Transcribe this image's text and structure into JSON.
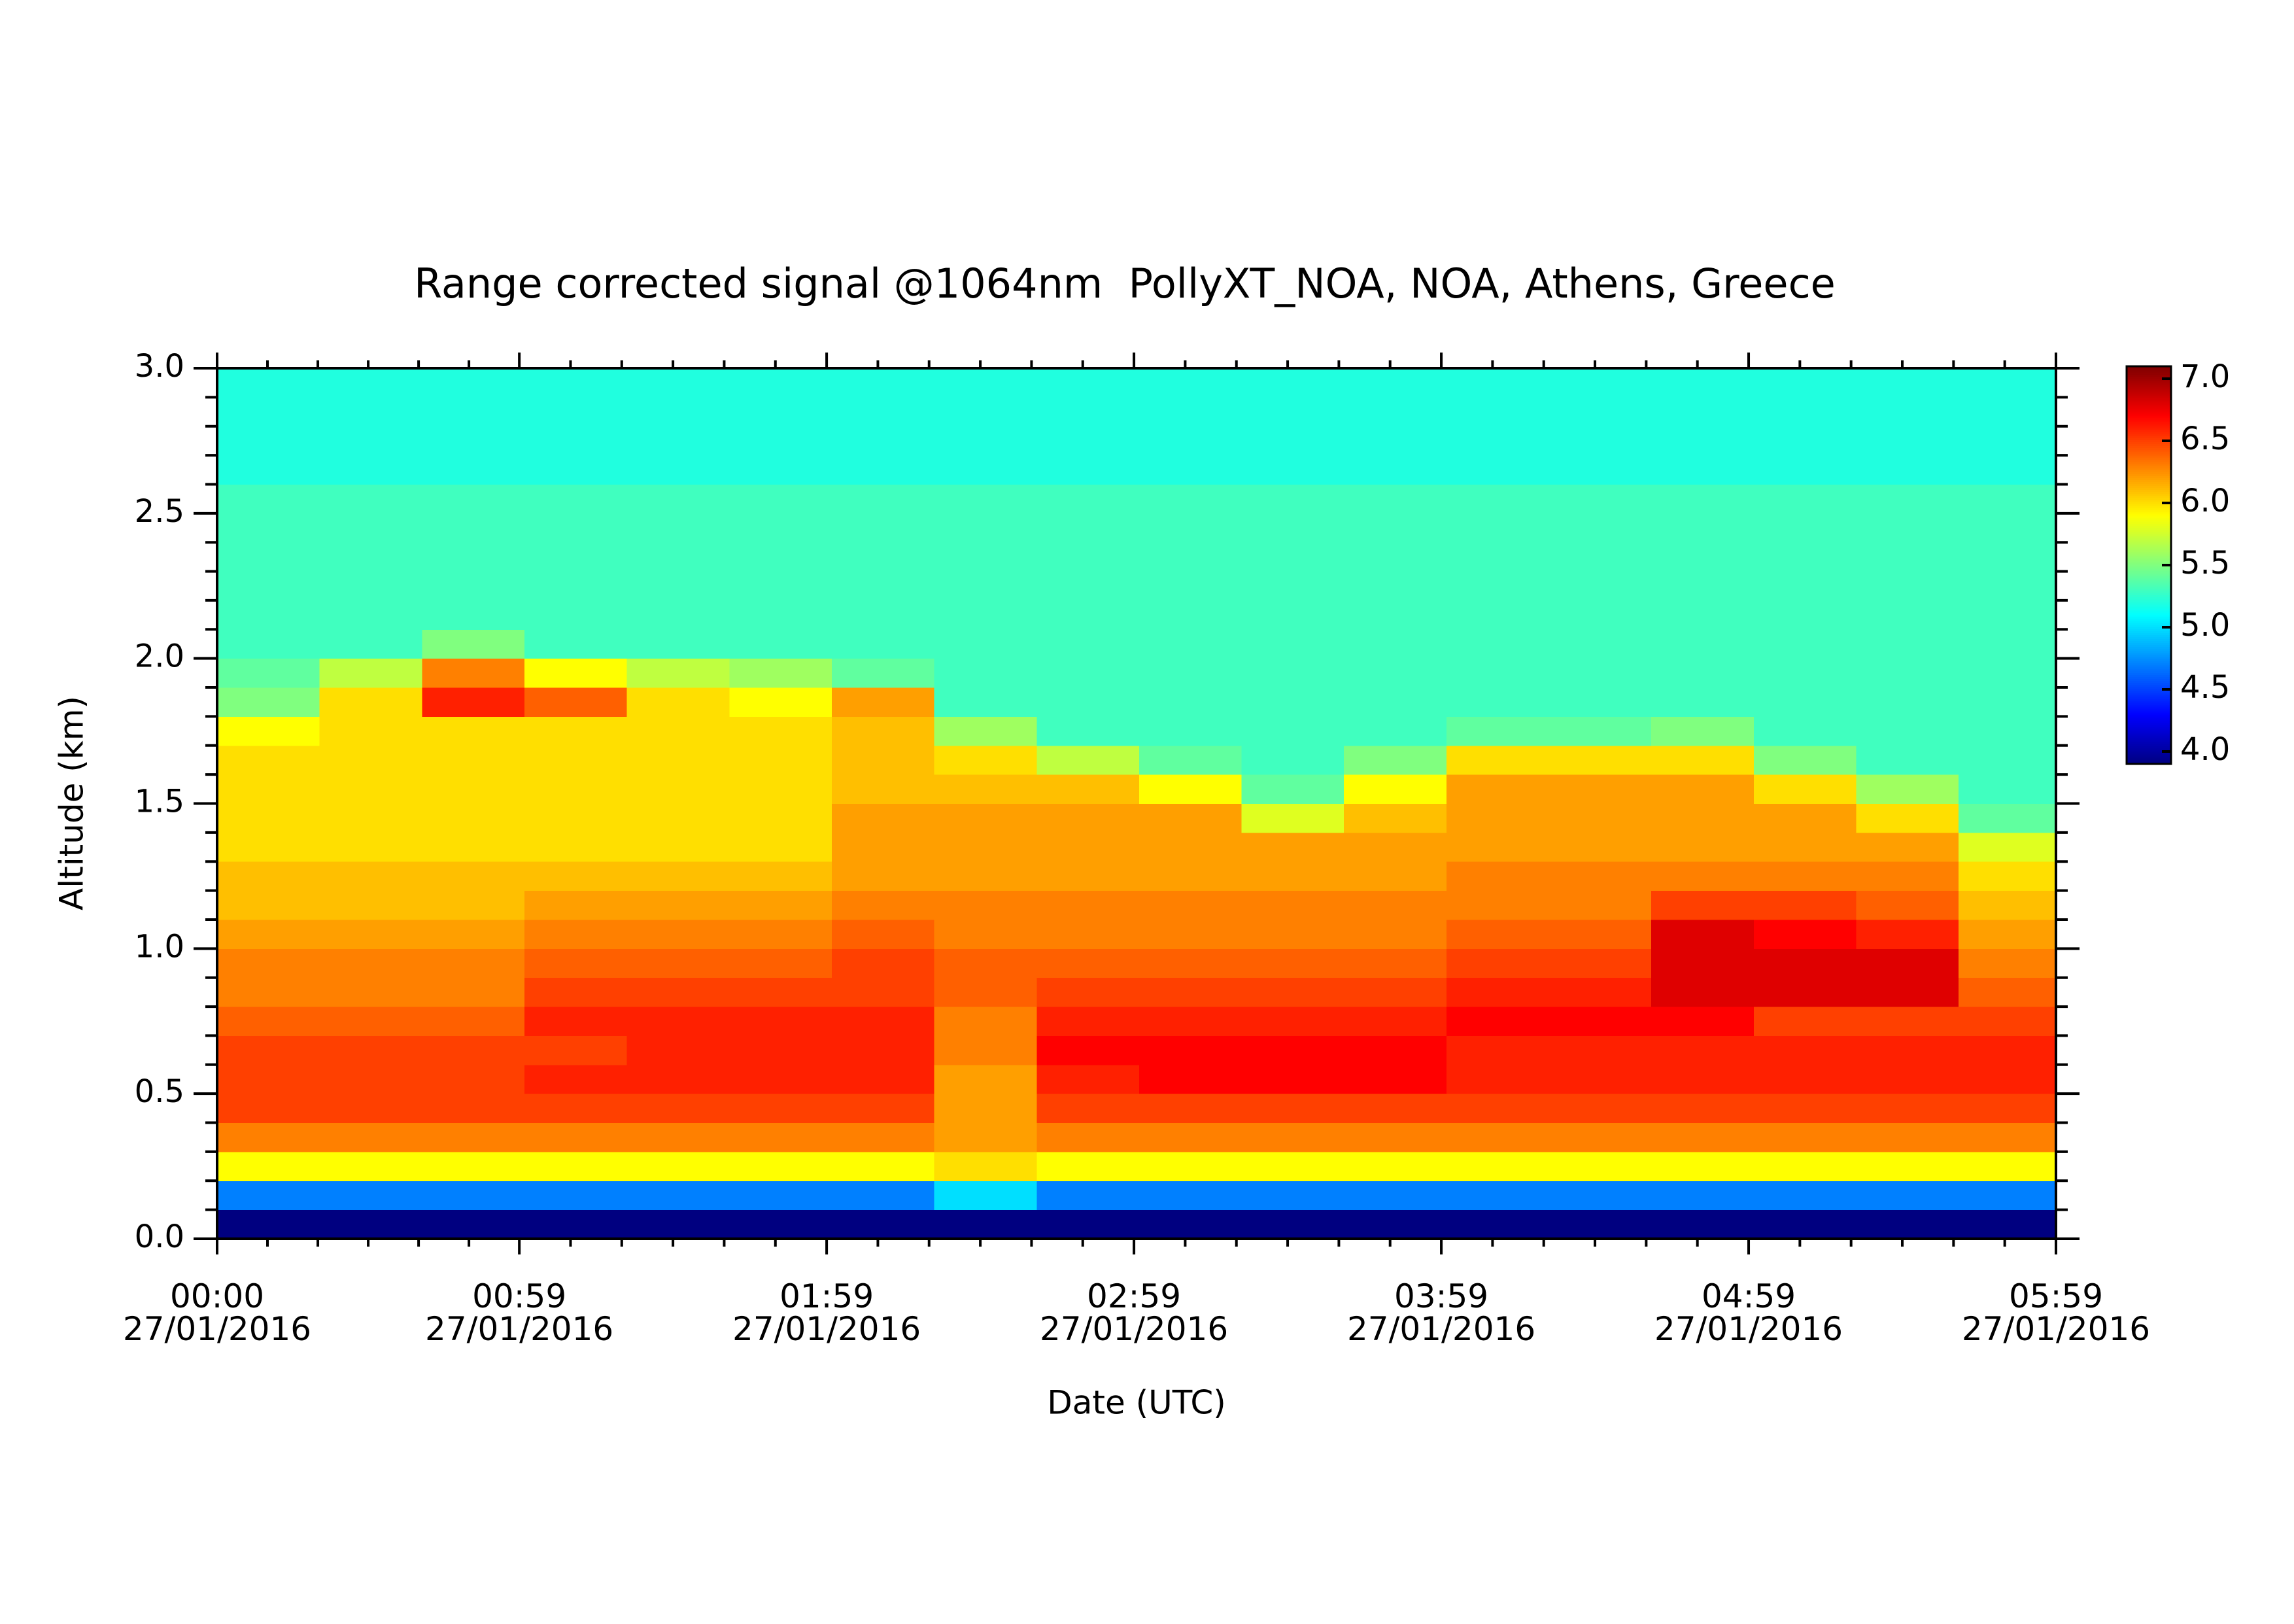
{
  "chart_data": {
    "type": "heatmap",
    "title": "Range corrected signal @1064nm  PollyXT_NOA, NOA, Athens, Greece",
    "x_label": "Date (UTC)",
    "y_label": "Altitude (km)",
    "colormap": "jet",
    "xlim": [
      0,
      359
    ],
    "xticks": [
      {
        "value": 0,
        "label": "00:00\n27/01/2016"
      },
      {
        "value": 59,
        "label": "00:59\n27/01/2016"
      },
      {
        "value": 119,
        "label": "01:59\n27/01/2016"
      },
      {
        "value": 179,
        "label": "02:59\n27/01/2016"
      },
      {
        "value": 239,
        "label": "03:59\n27/01/2016"
      },
      {
        "value": 299,
        "label": "04:59\n27/01/2016"
      },
      {
        "value": 359,
        "label": "05:59\n27/01/2016"
      }
    ],
    "ylim": [
      0,
      3
    ],
    "yticks": [
      {
        "value": 0,
        "label": "0.0"
      },
      0.5,
      {
        "value": 1,
        "label": "1.0"
      },
      1.5,
      {
        "value": 2,
        "label": "2.0"
      },
      2.5,
      {
        "value": 3,
        "label": "3.0"
      }
    ],
    "zlim": [
      3.9,
      7.1
    ],
    "zticks": [
      {
        "value": 4,
        "label": "4.0"
      },
      4.5,
      {
        "value": 5,
        "label": "5.0"
      },
      5.5,
      {
        "value": 6,
        "label": "6.0"
      },
      6.5,
      {
        "value": 7,
        "label": "7.0"
      }
    ],
    "x": [
      0,
      20,
      40,
      60,
      80,
      100,
      120,
      140,
      160,
      180,
      200,
      220,
      240,
      260,
      280,
      300,
      320,
      340
    ],
    "y": [
      0,
      0.1,
      0.2,
      0.3,
      0.4,
      0.5,
      0.6,
      0.7,
      0.8,
      0.9,
      1,
      1.1,
      1.2,
      1.3,
      1.4,
      1.5,
      1.6,
      1.7,
      1.8,
      1.9,
      2,
      2.1,
      2.2,
      2.3,
      2.4,
      2.5,
      2.6,
      2.7,
      2.8,
      2.9
    ],
    "z": [
      [
        3.9,
        3.9,
        3.9,
        3.9,
        3.9,
        3.9,
        3.9,
        3.9,
        3.9,
        3.9,
        3.9,
        3.9,
        3.9,
        3.9,
        3.9,
        3.9,
        3.9,
        3.9
      ],
      [
        4.7,
        4.7,
        4.7,
        4.7,
        4.7,
        4.7,
        4.7,
        5.0,
        4.7,
        4.7,
        4.7,
        4.7,
        4.7,
        4.7,
        4.7,
        4.7,
        4.7,
        4.7
      ],
      [
        5.9,
        5.9,
        5.9,
        5.9,
        5.9,
        5.9,
        5.9,
        6.0,
        5.9,
        5.9,
        5.9,
        5.9,
        5.9,
        5.9,
        5.9,
        5.9,
        5.9,
        5.9
      ],
      [
        6.3,
        6.3,
        6.3,
        6.3,
        6.3,
        6.3,
        6.3,
        6.2,
        6.3,
        6.3,
        6.3,
        6.3,
        6.3,
        6.3,
        6.3,
        6.3,
        6.3,
        6.3
      ],
      [
        6.5,
        6.5,
        6.5,
        6.5,
        6.5,
        6.5,
        6.5,
        6.2,
        6.5,
        6.5,
        6.5,
        6.5,
        6.5,
        6.5,
        6.5,
        6.5,
        6.5,
        6.5
      ],
      [
        6.5,
        6.5,
        6.5,
        6.6,
        6.6,
        6.6,
        6.6,
        6.2,
        6.6,
        6.7,
        6.7,
        6.7,
        6.6,
        6.6,
        6.6,
        6.6,
        6.6,
        6.6
      ],
      [
        6.5,
        6.5,
        6.5,
        6.5,
        6.6,
        6.6,
        6.6,
        6.3,
        6.7,
        6.7,
        6.7,
        6.7,
        6.6,
        6.6,
        6.6,
        6.6,
        6.6,
        6.6
      ],
      [
        6.4,
        6.4,
        6.4,
        6.6,
        6.6,
        6.6,
        6.6,
        6.3,
        6.6,
        6.6,
        6.6,
        6.6,
        6.7,
        6.7,
        6.7,
        6.5,
        6.5,
        6.5
      ],
      [
        6.3,
        6.3,
        6.3,
        6.5,
        6.5,
        6.5,
        6.5,
        6.4,
        6.5,
        6.5,
        6.5,
        6.5,
        6.6,
        6.6,
        6.8,
        6.8,
        6.8,
        6.4
      ],
      [
        6.3,
        6.3,
        6.3,
        6.4,
        6.4,
        6.4,
        6.5,
        6.4,
        6.4,
        6.4,
        6.4,
        6.4,
        6.5,
        6.5,
        6.8,
        6.8,
        6.8,
        6.3
      ],
      [
        6.2,
        6.2,
        6.2,
        6.3,
        6.3,
        6.3,
        6.4,
        6.3,
        6.3,
        6.3,
        6.3,
        6.3,
        6.4,
        6.4,
        6.8,
        6.7,
        6.6,
        6.2
      ],
      [
        6.1,
        6.1,
        6.1,
        6.2,
        6.2,
        6.2,
        6.3,
        6.3,
        6.3,
        6.3,
        6.3,
        6.3,
        6.3,
        6.3,
        6.5,
        6.5,
        6.4,
        6.1
      ],
      [
        6.1,
        6.1,
        6.1,
        6.1,
        6.1,
        6.1,
        6.2,
        6.2,
        6.2,
        6.2,
        6.2,
        6.2,
        6.3,
        6.3,
        6.3,
        6.3,
        6.3,
        6.0
      ],
      [
        6.0,
        6.0,
        6.0,
        6.0,
        6.0,
        6.0,
        6.2,
        6.2,
        6.2,
        6.2,
        6.2,
        6.2,
        6.2,
        6.2,
        6.2,
        6.2,
        6.2,
        5.8
      ],
      [
        6.0,
        6.0,
        6.0,
        6.0,
        6.0,
        6.0,
        6.2,
        6.2,
        6.2,
        6.2,
        5.8,
        6.1,
        6.2,
        6.2,
        6.2,
        6.2,
        6.0,
        5.4
      ],
      [
        6.0,
        6.0,
        6.0,
        6.0,
        6.0,
        6.0,
        6.1,
        6.1,
        6.1,
        5.9,
        5.4,
        5.9,
        6.2,
        6.2,
        6.2,
        6.0,
        5.6,
        5.3
      ],
      [
        6.0,
        6.0,
        6.0,
        6.0,
        6.0,
        6.0,
        6.1,
        6.0,
        5.7,
        5.4,
        5.3,
        5.5,
        6.0,
        6.0,
        6.0,
        5.5,
        5.3,
        5.3
      ],
      [
        5.9,
        6.0,
        6.0,
        6.0,
        6.0,
        6.0,
        6.1,
        5.6,
        5.3,
        5.3,
        5.3,
        5.3,
        5.4,
        5.4,
        5.5,
        5.3,
        5.3,
        5.3
      ],
      [
        5.5,
        6.0,
        6.6,
        6.4,
        6.0,
        5.9,
        6.2,
        5.3,
        5.3,
        5.3,
        5.3,
        5.3,
        5.3,
        5.3,
        5.3,
        5.3,
        5.3,
        5.3
      ],
      [
        5.4,
        5.7,
        6.3,
        5.9,
        5.7,
        5.6,
        5.4,
        5.3,
        5.3,
        5.3,
        5.3,
        5.3,
        5.3,
        5.3,
        5.3,
        5.3,
        5.3,
        5.3
      ],
      [
        5.3,
        5.3,
        5.5,
        5.3,
        5.3,
        5.3,
        5.3,
        5.3,
        5.3,
        5.3,
        5.3,
        5.3,
        5.3,
        5.3,
        5.3,
        5.3,
        5.3,
        5.3
      ],
      [
        5.3,
        5.3,
        5.3,
        5.3,
        5.3,
        5.3,
        5.3,
        5.3,
        5.3,
        5.3,
        5.3,
        5.3,
        5.3,
        5.3,
        5.3,
        5.3,
        5.3,
        5.3
      ],
      [
        5.3,
        5.3,
        5.3,
        5.3,
        5.3,
        5.3,
        5.3,
        5.3,
        5.3,
        5.3,
        5.3,
        5.3,
        5.3,
        5.3,
        5.3,
        5.3,
        5.3,
        5.3
      ],
      [
        5.3,
        5.3,
        5.3,
        5.3,
        5.3,
        5.3,
        5.3,
        5.3,
        5.3,
        5.3,
        5.3,
        5.3,
        5.3,
        5.3,
        5.3,
        5.3,
        5.3,
        5.3
      ],
      [
        5.3,
        5.3,
        5.3,
        5.3,
        5.3,
        5.3,
        5.3,
        5.3,
        5.3,
        5.3,
        5.3,
        5.3,
        5.3,
        5.3,
        5.3,
        5.3,
        5.3,
        5.3
      ],
      [
        5.3,
        5.3,
        5.3,
        5.3,
        5.3,
        5.3,
        5.3,
        5.3,
        5.3,
        5.3,
        5.3,
        5.3,
        5.3,
        5.3,
        5.3,
        5.3,
        5.3,
        5.3
      ],
      [
        5.2,
        5.2,
        5.2,
        5.2,
        5.2,
        5.2,
        5.2,
        5.2,
        5.2,
        5.2,
        5.2,
        5.2,
        5.2,
        5.2,
        5.2,
        5.2,
        5.2,
        5.2
      ],
      [
        5.2,
        5.2,
        5.2,
        5.2,
        5.2,
        5.2,
        5.2,
        5.2,
        5.2,
        5.2,
        5.2,
        5.2,
        5.2,
        5.2,
        5.2,
        5.2,
        5.2,
        5.2
      ],
      [
        5.2,
        5.2,
        5.2,
        5.2,
        5.2,
        5.2,
        5.2,
        5.2,
        5.2,
        5.2,
        5.2,
        5.2,
        5.2,
        5.2,
        5.2,
        5.2,
        5.2,
        5.2
      ],
      [
        5.2,
        5.2,
        5.2,
        5.2,
        5.2,
        5.2,
        5.2,
        5.2,
        5.2,
        5.2,
        5.2,
        5.2,
        5.2,
        5.2,
        5.2,
        5.2,
        5.2,
        5.2
      ]
    ]
  }
}
